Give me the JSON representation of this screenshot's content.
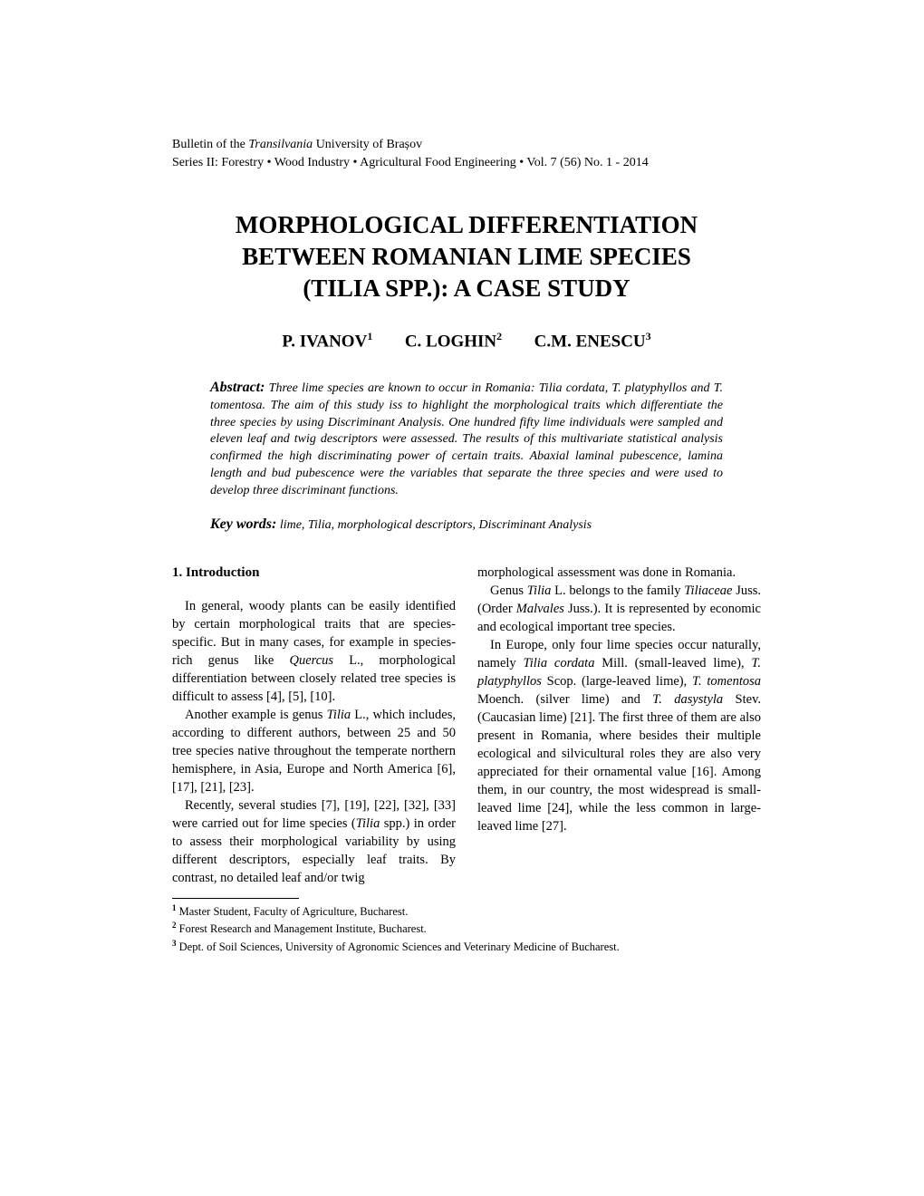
{
  "journal": {
    "line1_a": "Bulletin of the ",
    "line1_b": "Transilvania",
    "line1_c": " University of Brașov",
    "line2": "Series II: Forestry • Wood Industry • Agricultural Food Engineering • Vol. 7 (56) No. 1 - 2014"
  },
  "title": {
    "l1": "MORPHOLOGICAL DIFFERENTIATION",
    "l2": "BETWEEN ROMANIAN LIME SPECIES",
    "l3": "(TILIA SPP.): A CASE STUDY"
  },
  "authors": {
    "a1": "P. IVANOV",
    "s1": "1",
    "a2": "C. LOGHIN",
    "s2": "2",
    "a3": "C.M. ENESCU",
    "s3": "3"
  },
  "abstract": {
    "label": "Abstract:",
    "text": " Three lime species are known to occur in Romania: Tilia cordata, T. platyphyllos and T. tomentosa. The aim of this study iss to highlight the morphological traits which differentiate the three species by using Discriminant Analysis. One hundred fifty lime individuals were sampled and eleven leaf and twig descriptors were assessed. The results of this multivariate statistical analysis confirmed the high discriminating power of certain traits. Abaxial laminal pubescence, lamina length and bud pubescence were the variables that separate the three species and were used to develop three discriminant functions."
  },
  "keywords": {
    "label": "Key words:",
    "text": " lime, Tilia, morphological descriptors, Discriminant Analysis"
  },
  "body": {
    "section_heading": "1. Introduction",
    "col1": {
      "p1a": "In general, woody plants can be easily identified by certain morphological traits that are species-specific. But in many cases, for example in species-rich genus like ",
      "p1b": "Quercus",
      "p1c": " L., morphological differentiation between closely related tree species is difficult to assess [4], [5], [10].",
      "p2a": "Another example is genus ",
      "p2b": "Tilia",
      "p2c": " L., which includes, according to different authors, between 25 and 50 tree species native throughout the temperate northern hemisphere, in Asia, Europe and North America [6], [17], [21], [23].",
      "p3a": "Recently, several studies [7], [19], [22], [32], [33] were carried out for lime species (",
      "p3b": "Tilia",
      "p3c": " spp.) in order to assess their morphological variability by using different descriptors, especially leaf traits. By contrast, no detailed leaf and/or twig"
    },
    "col2": {
      "p0": "morphological assessment was done in Romania.",
      "p1a": "Genus ",
      "p1b": "Tilia",
      "p1c": " L. belongs to the family ",
      "p1d": "Tiliaceae",
      "p1e": " Juss. (Order ",
      "p1f": "Malvales",
      "p1g": " Juss.). It is represented by economic and ecological important tree species.",
      "p2a": "In Europe, only four lime species occur naturally, namely ",
      "p2b": "Tilia cordata",
      "p2c": " Mill. (small-leaved lime), ",
      "p2d": "T. platyphyllos",
      "p2e": " Scop. (large-leaved lime), ",
      "p2f": "T. tomentosa",
      "p2g": " Moench. (silver lime) and ",
      "p2h": "T. dasystyla",
      "p2i": " Stev. (Caucasian lime) [21]. The first three of them are also present in Romania, where besides their multiple ecological and silvicultural roles they are also very appreciated for their ornamental value [16]. Among them, in our country, the most widespread is small-leaved lime [24], while the less common in large-leaved lime [27]."
    }
  },
  "footnotes": {
    "f1": " Master Student, Faculty of Agriculture, Bucharest.",
    "f2": " Forest Research and Management Institute, Bucharest.",
    "f3": " Dept. of Soil Sciences, University of Agronomic Sciences and Veterinary Medicine of Bucharest."
  }
}
